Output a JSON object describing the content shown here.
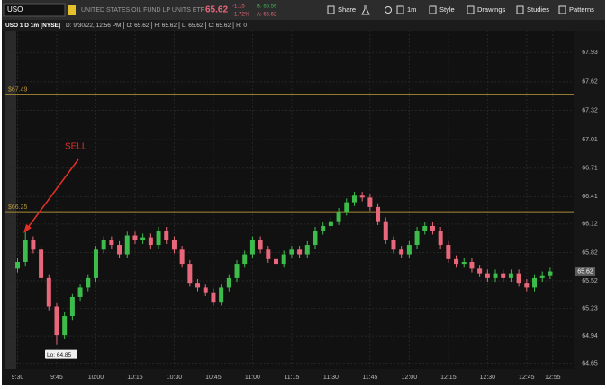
{
  "toolbar": {
    "symbol": "USO",
    "description": "UNITED STATES OIL FUND LP UNITS ETF",
    "last": "65.62",
    "change": "-1.15",
    "change_pct": "-1.72%",
    "bid": "B: 65.59",
    "ask": "A: 65.62",
    "buttons": [
      "Share",
      "1m",
      "Style",
      "Drawings",
      "Studies",
      "Patterns"
    ]
  },
  "info_bar": [
    "USO 1 D 1m [NYSE]",
    "D: 9/30/22, 12:56 PM",
    "O: 65.62",
    "H: 65.62",
    "L: 65.62",
    "C: 65.62",
    "R: 0"
  ],
  "chart_data": {
    "type": "candlestick",
    "x": [
      570,
      573,
      576,
      579,
      582,
      585,
      588,
      591,
      594,
      597,
      600,
      603,
      606,
      609,
      612,
      615,
      618,
      621,
      624,
      627,
      630,
      633,
      636,
      639,
      642,
      645,
      648,
      651,
      654,
      657,
      660,
      663,
      666,
      669,
      672,
      675,
      678,
      681,
      684,
      687,
      690,
      693,
      696,
      699,
      702,
      705,
      708,
      711,
      714,
      717,
      720,
      723,
      726,
      729,
      732,
      735,
      738,
      741,
      744,
      747,
      750,
      753,
      756,
      759,
      762,
      765,
      768,
      771,
      774
    ],
    "open": [
      65.65,
      65.72,
      65.95,
      65.85,
      65.55,
      65.25,
      64.95,
      65.15,
      65.35,
      65.45,
      65.55,
      65.85,
      65.95,
      65.9,
      65.8,
      66.0,
      65.95,
      65.98,
      65.9,
      66.05,
      65.95,
      65.85,
      65.7,
      65.5,
      65.45,
      65.4,
      65.3,
      65.45,
      65.55,
      65.7,
      65.8,
      65.95,
      65.85,
      65.75,
      65.7,
      65.8,
      65.85,
      65.8,
      65.9,
      66.05,
      66.1,
      66.15,
      66.25,
      66.35,
      66.42,
      66.4,
      66.3,
      66.15,
      65.95,
      65.85,
      65.8,
      65.9,
      66.05,
      66.1,
      66.05,
      65.9,
      65.75,
      65.7,
      65.72,
      65.65,
      65.6,
      65.55,
      65.6,
      65.55,
      65.6,
      65.5,
      65.45,
      65.55,
      65.58
    ],
    "high": [
      65.76,
      66.05,
      65.99,
      65.89,
      65.59,
      65.29,
      65.19,
      65.39,
      65.49,
      65.59,
      65.89,
      65.99,
      65.99,
      65.94,
      66.04,
      66.04,
      66.02,
      66.02,
      66.09,
      66.09,
      65.99,
      65.89,
      65.74,
      65.54,
      65.49,
      65.44,
      65.49,
      65.59,
      65.74,
      65.84,
      65.99,
      65.99,
      65.89,
      65.79,
      65.84,
      65.89,
      65.89,
      65.94,
      66.09,
      66.14,
      66.19,
      66.29,
      66.39,
      66.46,
      66.46,
      66.44,
      66.34,
      66.19,
      65.99,
      65.89,
      65.94,
      66.09,
      66.14,
      66.14,
      66.09,
      65.94,
      65.79,
      65.76,
      65.76,
      65.69,
      65.64,
      65.64,
      65.64,
      65.64,
      65.64,
      65.54,
      65.59,
      65.62,
      65.66
    ],
    "low": [
      65.61,
      65.68,
      65.81,
      65.51,
      65.21,
      64.85,
      64.91,
      65.11,
      65.31,
      65.41,
      65.51,
      65.81,
      65.86,
      65.76,
      65.76,
      65.91,
      65.91,
      65.86,
      65.86,
      65.91,
      65.81,
      65.66,
      65.46,
      65.41,
      65.36,
      65.26,
      65.26,
      65.41,
      65.51,
      65.66,
      65.76,
      65.81,
      65.71,
      65.66,
      65.66,
      65.76,
      65.76,
      65.76,
      65.86,
      66.01,
      66.06,
      66.11,
      66.21,
      66.31,
      66.36,
      66.26,
      66.11,
      65.91,
      65.81,
      65.76,
      65.76,
      65.86,
      66.01,
      66.01,
      65.86,
      65.71,
      65.66,
      65.66,
      65.61,
      65.56,
      65.51,
      65.51,
      65.51,
      65.51,
      65.46,
      65.41,
      65.41,
      65.51,
      65.54
    ],
    "close": [
      65.72,
      65.95,
      65.85,
      65.55,
      65.25,
      64.95,
      65.15,
      65.35,
      65.45,
      65.55,
      65.85,
      65.95,
      65.9,
      65.8,
      66.0,
      65.95,
      65.98,
      65.9,
      66.05,
      65.95,
      65.85,
      65.7,
      65.5,
      65.45,
      65.4,
      65.3,
      65.45,
      65.55,
      65.7,
      65.8,
      65.95,
      65.85,
      65.75,
      65.7,
      65.8,
      65.85,
      65.8,
      65.9,
      66.05,
      66.1,
      66.15,
      66.25,
      66.35,
      66.42,
      66.4,
      66.3,
      66.15,
      65.95,
      65.85,
      65.8,
      65.9,
      66.05,
      66.1,
      66.05,
      65.9,
      65.75,
      65.7,
      65.72,
      65.65,
      65.6,
      65.55,
      65.6,
      65.55,
      65.6,
      65.5,
      65.45,
      65.55,
      65.58,
      65.62
    ],
    "up_color": "#3dbb4b",
    "down_color": "#e8677a",
    "xlim": [
      565,
      783
    ],
    "ylim": [
      64.59,
      68.16
    ],
    "yticks": [
      67.93,
      67.62,
      67.32,
      67.01,
      66.71,
      66.41,
      66.12,
      65.82,
      65.52,
      65.23,
      64.94,
      64.65
    ],
    "xticks": [
      {
        "value": 570,
        "label": "9:30"
      },
      {
        "value": 585,
        "label": "9:45"
      },
      {
        "value": 600,
        "label": "10:00"
      },
      {
        "value": 615,
        "label": "10:15"
      },
      {
        "value": 630,
        "label": "10:30"
      },
      {
        "value": 645,
        "label": "10:45"
      },
      {
        "value": 660,
        "label": "11:00"
      },
      {
        "value": 675,
        "label": "11:15"
      },
      {
        "value": 690,
        "label": "11:30"
      },
      {
        "value": 705,
        "label": "11:45"
      },
      {
        "value": 720,
        "label": "12:00"
      },
      {
        "value": 735,
        "label": "12:15"
      },
      {
        "value": 750,
        "label": "12:30"
      },
      {
        "value": 765,
        "label": "12:45"
      },
      {
        "value": 775,
        "label": "12:55"
      }
    ],
    "grid": true,
    "price_lines": [
      {
        "value": 67.49,
        "label": "$67.49"
      },
      {
        "value": 66.25,
        "label": "$66.25"
      }
    ],
    "annotation": "SELL",
    "low_marker": {
      "value": 64.85,
      "label": "Lo: 64.85"
    },
    "last_price": 65.62
  }
}
